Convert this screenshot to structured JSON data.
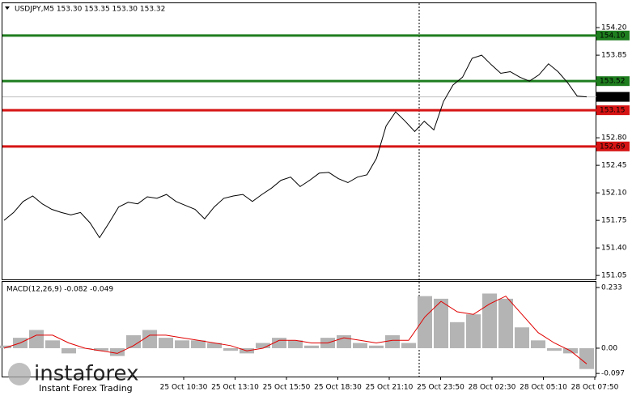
{
  "chart_data": [
    {
      "type": "line",
      "title": "USDJPY,M5  153.30 153.35 153.30 153.32",
      "color": "#000000",
      "values": [
        151.75,
        151.85,
        151.99,
        152.06,
        151.96,
        151.89,
        151.85,
        151.82,
        151.85,
        151.72,
        151.53,
        151.72,
        151.92,
        151.98,
        151.96,
        152.05,
        152.03,
        152.08,
        151.99,
        151.94,
        151.89,
        151.77,
        151.92,
        152.03,
        152.06,
        152.08,
        151.99,
        152.08,
        152.16,
        152.26,
        152.3,
        152.18,
        152.26,
        152.35,
        152.36,
        152.28,
        152.23,
        152.3,
        152.33,
        152.54,
        152.95,
        153.13,
        153.01,
        152.88,
        153.01,
        152.9,
        153.26,
        153.47,
        153.57,
        153.81,
        153.85,
        153.73,
        153.62,
        153.64,
        153.57,
        153.52,
        153.6,
        153.74,
        153.64,
        153.5,
        153.33,
        153.32
      ],
      "ylim": [
        151.0,
        154.51
      ],
      "yticks": [
        {
          "value": 154.2,
          "label": "154.20"
        },
        153.85,
        {
          "value": 152.8,
          "label": "152.80"
        },
        152.45,
        {
          "value": 152.1,
          "label": "152.10"
        },
        151.75,
        {
          "value": 151.4,
          "label": "151.40"
        },
        151.05
      ],
      "levels": [
        {
          "value": 154.1,
          "label": "154.10",
          "color": "#1e7d1e"
        },
        {
          "value": 153.52,
          "label": "153.52",
          "color": "#1e7d1e"
        },
        {
          "value": 153.15,
          "label": "153.15",
          "color": "#d61414"
        },
        {
          "value": 152.69,
          "label": "152.69",
          "color": "#d61414"
        }
      ],
      "current_price": {
        "value": 153.32,
        "label": "153.32"
      }
    },
    {
      "type": "macd",
      "title": "MACD(12,26,9) -0.082 -0.049",
      "histogram": {
        "color": "#b4b4b4",
        "values": [
          0.01,
          0.04,
          0.07,
          0.03,
          -0.02,
          0.0,
          -0.01,
          -0.03,
          0.05,
          0.07,
          0.04,
          0.03,
          0.03,
          0.02,
          -0.01,
          -0.02,
          0.02,
          0.04,
          0.03,
          0.01,
          0.04,
          0.05,
          0.02,
          0.01,
          0.05,
          0.02,
          0.2,
          0.19,
          0.1,
          0.13,
          0.21,
          0.19,
          0.08,
          0.03,
          -0.01,
          -0.02,
          -0.08
        ]
      },
      "signal": {
        "color": "#e00000",
        "values": [
          0.0,
          0.02,
          0.05,
          0.05,
          0.02,
          0.0,
          -0.01,
          -0.02,
          0.01,
          0.05,
          0.05,
          0.04,
          0.03,
          0.02,
          0.01,
          -0.01,
          0.0,
          0.03,
          0.03,
          0.02,
          0.02,
          0.04,
          0.03,
          0.02,
          0.03,
          0.03,
          0.12,
          0.18,
          0.14,
          0.13,
          0.17,
          0.2,
          0.13,
          0.06,
          0.02,
          -0.01,
          -0.06
        ]
      },
      "ylim": [
        -0.109,
        0.255
      ],
      "yticks": [
        0.233,
        {
          "value": 0,
          "label": "0.00"
        },
        -0.097
      ],
      "x_labels": [
        "25 Oct 10:30",
        "25 Oct 13:10",
        "25 Oct 15:50",
        "25 Oct 18:30",
        "25 Oct 21:10",
        "25 Oct 23:50",
        "28 Oct 02:30",
        "28 Oct 05:10",
        "28 Oct 07:50"
      ]
    }
  ],
  "watermark": {
    "brand": "instaforex",
    "tagline": "Instant Forex Trading"
  }
}
